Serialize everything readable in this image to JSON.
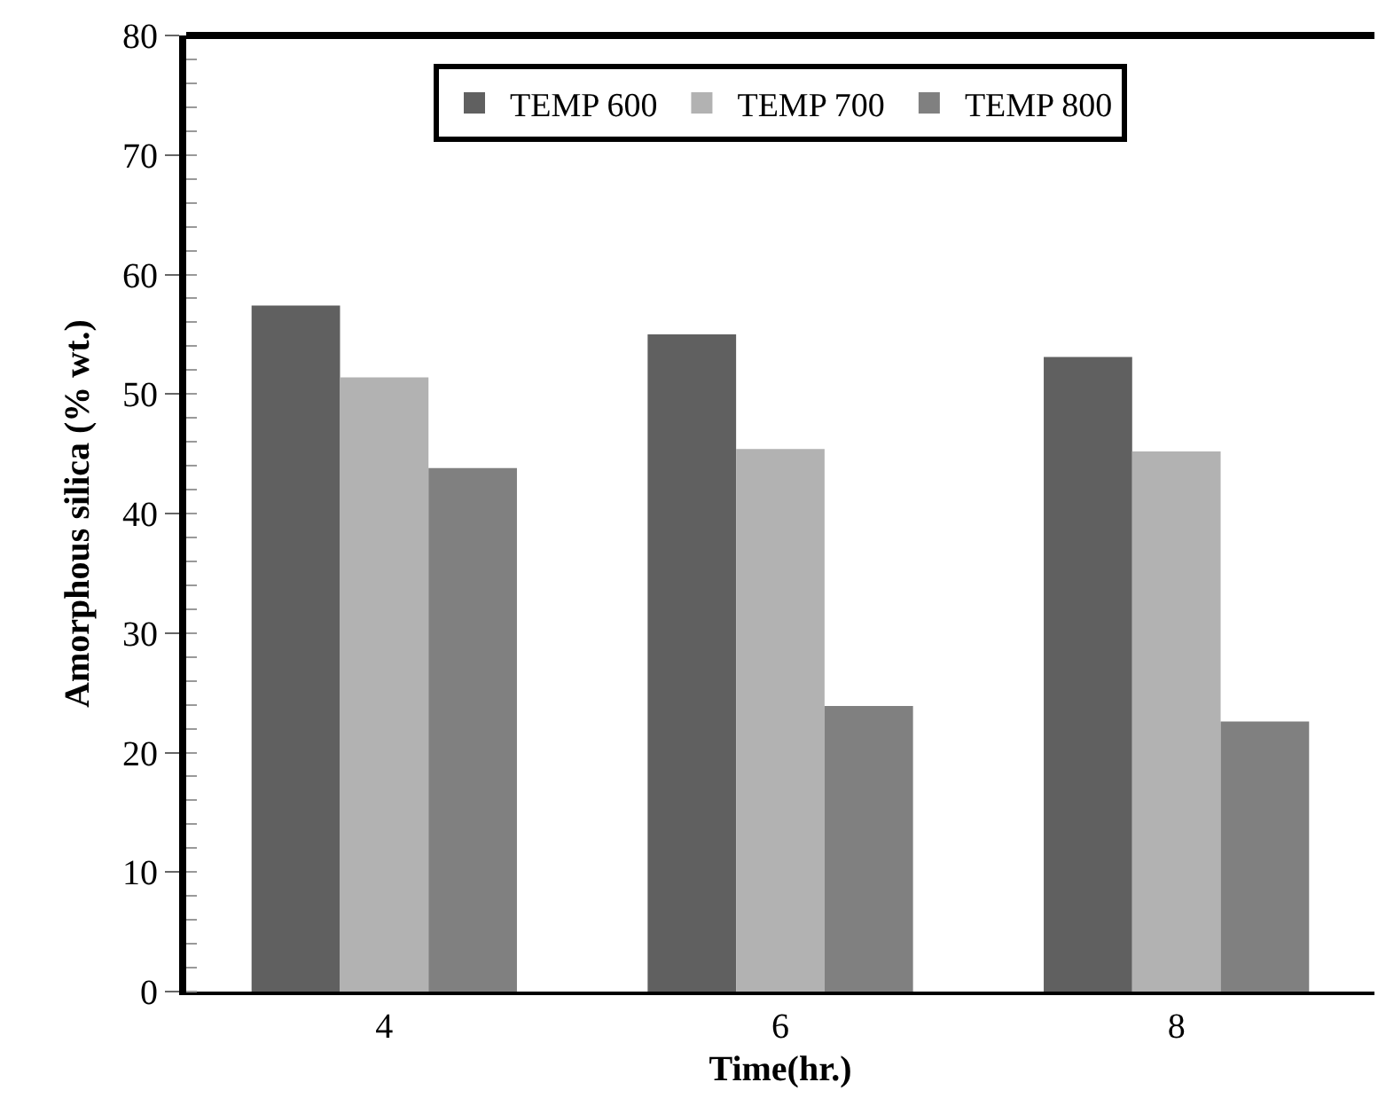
{
  "chart_data": {
    "type": "bar",
    "xlabel": "Time(hr.)",
    "ylabel": "Amorphous silica (% wt.)",
    "categories": [
      "4",
      "6",
      "8"
    ],
    "series": [
      {
        "name": "TEMP 600",
        "color": "#606060",
        "values": [
          57.4,
          55.0,
          53.1
        ]
      },
      {
        "name": "TEMP 700",
        "color": "#b2b2b2",
        "values": [
          51.4,
          45.4,
          45.2
        ]
      },
      {
        "name": "TEMP 800",
        "color": "#808080",
        "values": [
          43.8,
          23.9,
          22.6
        ]
      }
    ],
    "ylim": [
      0,
      80
    ],
    "yticks": [
      0,
      10,
      20,
      30,
      40,
      50,
      60,
      70,
      80
    ],
    "grid": false,
    "legend": "top"
  }
}
